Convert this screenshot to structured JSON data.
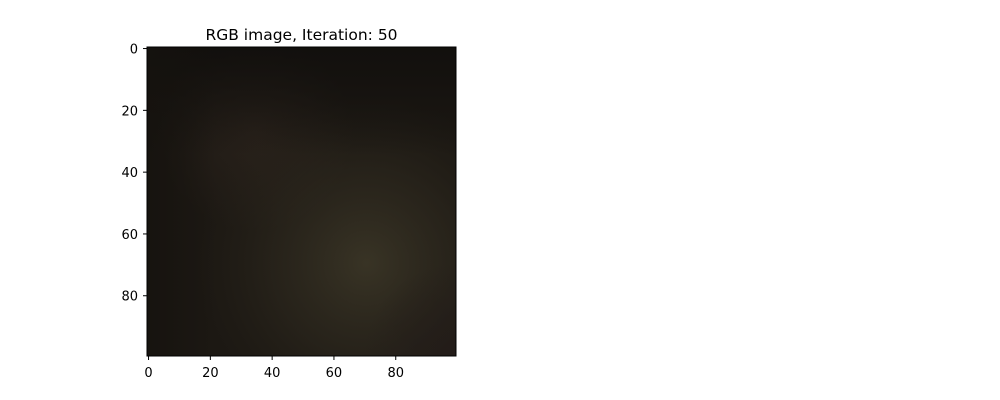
{
  "chart_data": {
    "type": "heatmap",
    "title": "RGB image, Iteration: 50",
    "xlabel": "",
    "ylabel": "",
    "image_size": [
      100,
      100
    ],
    "xlim": [
      -0.5,
      99.5
    ],
    "ylim": [
      99.5,
      -0.5
    ],
    "x_ticks": [
      0,
      20,
      40,
      60,
      80
    ],
    "y_ticks": [
      0,
      20,
      40,
      60,
      80
    ],
    "x_tick_labels": [
      "0",
      "20",
      "40",
      "60",
      "80"
    ],
    "y_tick_labels": [
      "0",
      "20",
      "40",
      "60",
      "80"
    ],
    "colors": {
      "base": "#1c1813",
      "glow": "#3a3526",
      "warm": "#2b231c",
      "corner_dark": "#15120e",
      "right_dark": "#231c19"
    }
  }
}
